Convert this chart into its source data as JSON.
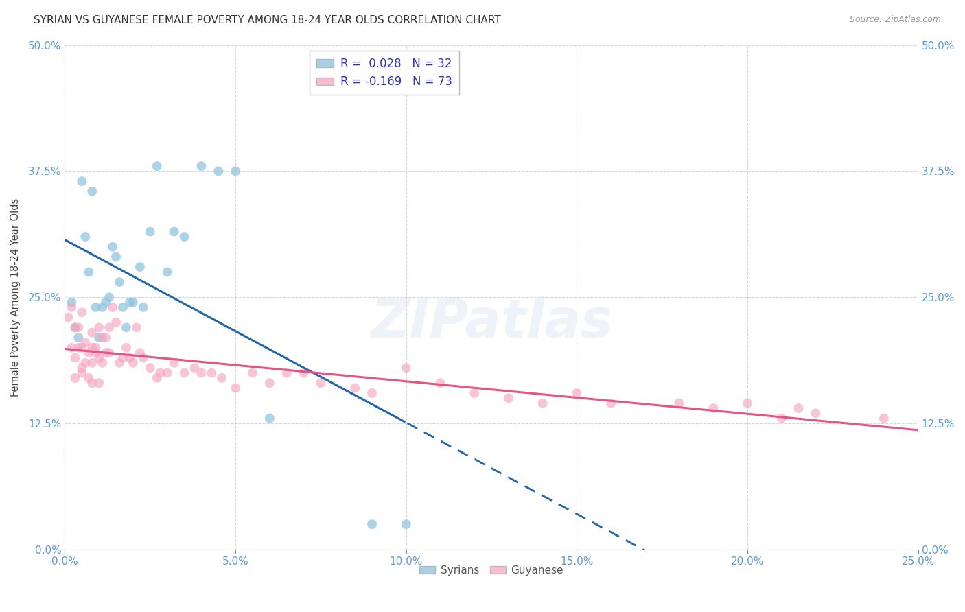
{
  "title": "SYRIAN VS GUYANESE FEMALE POVERTY AMONG 18-24 YEAR OLDS CORRELATION CHART",
  "source": "Source: ZipAtlas.com",
  "ylabel": "Female Poverty Among 18-24 Year Olds",
  "xlim": [
    0.0,
    0.25
  ],
  "ylim": [
    0.0,
    0.5
  ],
  "legend_r_syrian": "R =  0.028",
  "legend_n_syrian": "N = 32",
  "legend_r_guyanese": "R = -0.169",
  "legend_n_guyanese": "N = 73",
  "syrian_color": "#92c5de",
  "guyanese_color": "#f4a6c0",
  "trend_syrian_color": "#2166ac",
  "trend_guyanese_color": "#e75480",
  "background_color": "#ffffff",
  "grid_color": "#cccccc",
  "watermark": "ZIPatlas",
  "syrian_x": [
    0.002,
    0.003,
    0.004,
    0.005,
    0.006,
    0.007,
    0.008,
    0.009,
    0.01,
    0.011,
    0.012,
    0.013,
    0.014,
    0.015,
    0.016,
    0.017,
    0.018,
    0.019,
    0.02,
    0.022,
    0.023,
    0.025,
    0.027,
    0.03,
    0.032,
    0.035,
    0.04,
    0.045,
    0.05,
    0.06,
    0.09,
    0.1
  ],
  "syrian_y": [
    0.245,
    0.22,
    0.21,
    0.365,
    0.31,
    0.275,
    0.355,
    0.24,
    0.21,
    0.24,
    0.245,
    0.25,
    0.3,
    0.29,
    0.265,
    0.24,
    0.22,
    0.245,
    0.245,
    0.28,
    0.24,
    0.315,
    0.38,
    0.275,
    0.315,
    0.31,
    0.38,
    0.375,
    0.375,
    0.13,
    0.025,
    0.025
  ],
  "guyanese_x": [
    0.001,
    0.002,
    0.002,
    0.003,
    0.003,
    0.003,
    0.004,
    0.004,
    0.005,
    0.005,
    0.005,
    0.005,
    0.006,
    0.006,
    0.007,
    0.007,
    0.008,
    0.008,
    0.008,
    0.008,
    0.009,
    0.009,
    0.01,
    0.01,
    0.01,
    0.011,
    0.011,
    0.012,
    0.012,
    0.013,
    0.013,
    0.014,
    0.015,
    0.016,
    0.017,
    0.018,
    0.019,
    0.02,
    0.021,
    0.022,
    0.023,
    0.025,
    0.027,
    0.028,
    0.03,
    0.032,
    0.035,
    0.038,
    0.04,
    0.043,
    0.046,
    0.05,
    0.055,
    0.06,
    0.065,
    0.07,
    0.075,
    0.085,
    0.09,
    0.1,
    0.11,
    0.12,
    0.13,
    0.14,
    0.15,
    0.16,
    0.18,
    0.19,
    0.2,
    0.21,
    0.215,
    0.22,
    0.24
  ],
  "guyanese_y": [
    0.23,
    0.24,
    0.2,
    0.22,
    0.19,
    0.17,
    0.22,
    0.2,
    0.235,
    0.2,
    0.18,
    0.175,
    0.205,
    0.185,
    0.195,
    0.17,
    0.215,
    0.2,
    0.185,
    0.165,
    0.2,
    0.195,
    0.22,
    0.19,
    0.165,
    0.21,
    0.185,
    0.21,
    0.195,
    0.22,
    0.195,
    0.24,
    0.225,
    0.185,
    0.19,
    0.2,
    0.19,
    0.185,
    0.22,
    0.195,
    0.19,
    0.18,
    0.17,
    0.175,
    0.175,
    0.185,
    0.175,
    0.18,
    0.175,
    0.175,
    0.17,
    0.16,
    0.175,
    0.165,
    0.175,
    0.175,
    0.165,
    0.16,
    0.155,
    0.18,
    0.165,
    0.155,
    0.15,
    0.145,
    0.155,
    0.145,
    0.145,
    0.14,
    0.145,
    0.13,
    0.14,
    0.135,
    0.13
  ],
  "marker_size": 100,
  "trend_line_start": 0.0,
  "trend_line_end": 0.25,
  "syrian_trend_solid_end": 0.1,
  "xtick_vals": [
    0.0,
    0.05,
    0.1,
    0.15,
    0.2,
    0.25
  ],
  "ytick_vals": [
    0.0,
    0.125,
    0.25,
    0.375,
    0.5
  ]
}
